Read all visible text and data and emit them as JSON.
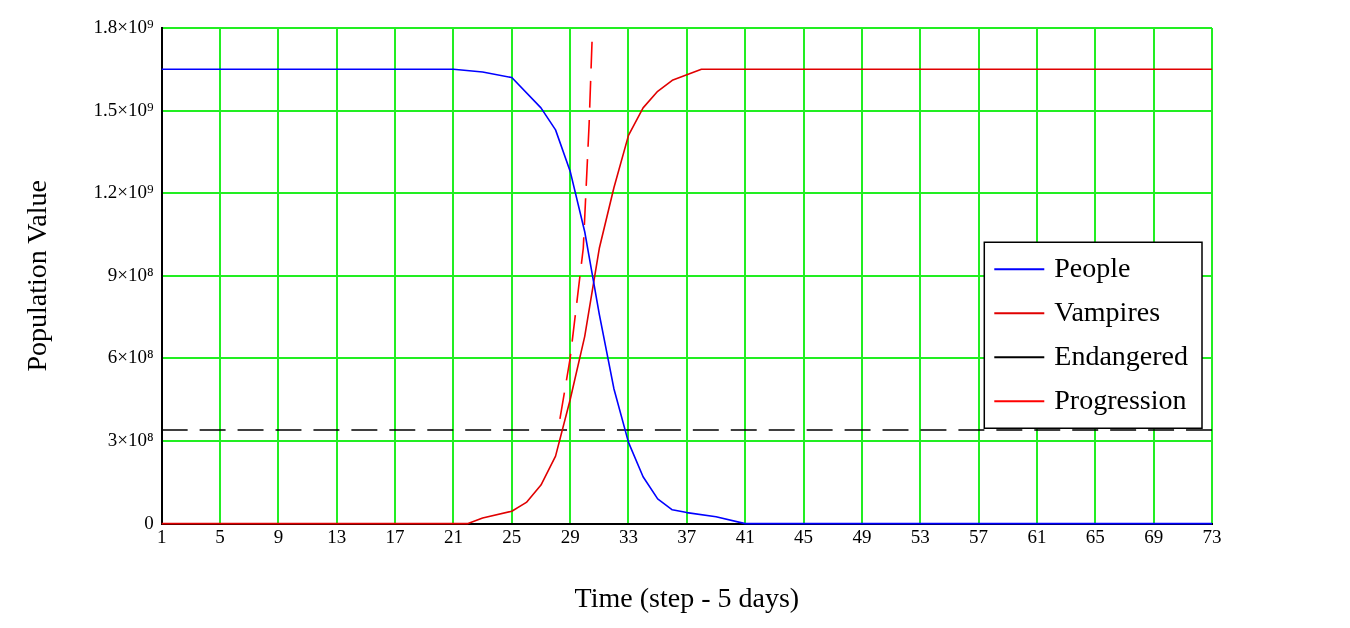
{
  "chart_data": {
    "type": "line",
    "xlabel": "Time (step - 5 days)",
    "ylabel": "Population Value",
    "xlim": [
      1,
      73
    ],
    "ylim": [
      0,
      1800000000
    ],
    "xticks": [
      1,
      5,
      9,
      13,
      17,
      21,
      25,
      29,
      33,
      37,
      41,
      45,
      49,
      53,
      57,
      61,
      65,
      69,
      73
    ],
    "yticks": [
      0,
      {
        "value": 300000000,
        "label": "3×10⁸"
      },
      {
        "value": 600000000,
        "label": "6×10⁸"
      },
      {
        "value": 900000000,
        "label": "9×10⁸"
      },
      {
        "value": 1200000000,
        "label": "1.2×10⁹"
      },
      {
        "value": 1500000000,
        "label": "1.5×10⁹"
      },
      {
        "value": 1800000000,
        "label": "1.8×10⁹"
      }
    ],
    "grid": true,
    "legend": "right",
    "marker": "none",
    "series": [
      {
        "name": "People",
        "color": "#0000ff",
        "line_style": "solid",
        "x": [
          1,
          21,
          23,
          25,
          27,
          28,
          29,
          30,
          31,
          32,
          33,
          34,
          35,
          36,
          37,
          39,
          41,
          73
        ],
        "values": [
          1650000000,
          1650000000,
          1640000000,
          1620000000,
          1510000000,
          1430000000,
          1280000000,
          1060000000,
          760000000,
          490000000,
          295000000,
          170000000,
          90000000,
          50000000,
          40000000,
          25000000,
          0,
          0
        ]
      },
      {
        "name": "Vampires",
        "color": "#e00000",
        "line_style": "solid",
        "x": [
          1,
          22,
          23,
          25,
          26,
          27,
          28,
          29,
          30,
          31,
          32,
          33,
          34,
          35,
          36,
          37,
          38,
          73
        ],
        "values": [
          0,
          0,
          20000000,
          45000000,
          77000000,
          140000000,
          245000000,
          450000000,
          680000000,
          1000000000,
          1220000000,
          1410000000,
          1510000000,
          1570000000,
          1610000000,
          1630000000,
          1650000000,
          1650000000
        ]
      },
      {
        "name": "Endangered",
        "color": "#000000",
        "line_style": "dashed",
        "x": [
          1,
          73
        ],
        "values": [
          340000000,
          340000000
        ]
      },
      {
        "name": "Progression",
        "color": "#ff0000",
        "line_style": "dashed",
        "x": [
          28.3,
          29,
          29.9,
          30.3,
          30.5
        ],
        "values": [
          380000000,
          600000000,
          1000000000,
          1450000000,
          1750000000
        ]
      }
    ]
  }
}
